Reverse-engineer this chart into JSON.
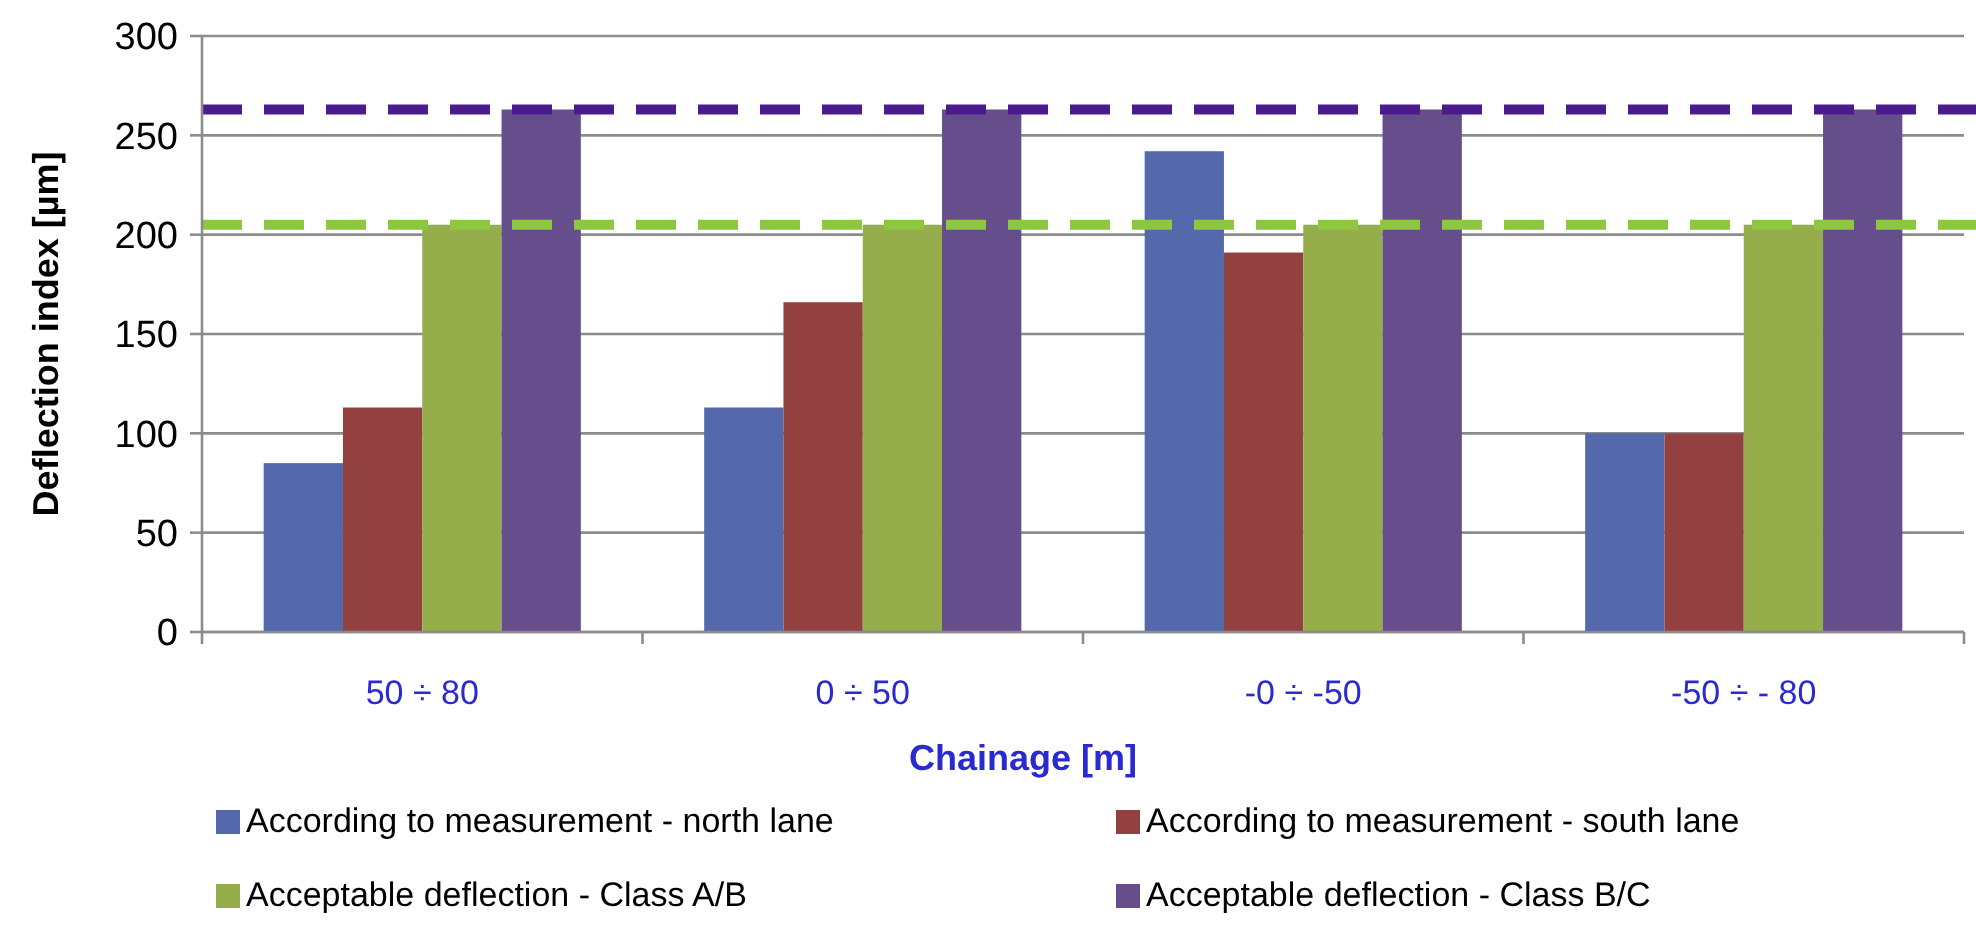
{
  "chart_data": {
    "type": "bar",
    "xlabel": "Chainage  [m]",
    "ylabel": "Deflection  index  [µm]",
    "categories": [
      "50 ÷ 80",
      "0 ÷  50",
      "-0 ÷ -50",
      "-50 ÷ - 80"
    ],
    "series": [
      {
        "name": "According to measurement - north lane",
        "color": "#5469ab",
        "values": [
          85,
          113,
          242,
          100
        ]
      },
      {
        "name": "According to measurement - south lane",
        "color": "#924140",
        "values": [
          113,
          166,
          191,
          100
        ]
      },
      {
        "name": "Acceptable deflection - Class A/B",
        "color": "#95ae4b",
        "values": [
          205,
          205,
          205,
          205
        ]
      },
      {
        "name": "Acceptable deflection - Class B/C",
        "color": "#664d8b",
        "values": [
          263,
          263,
          263,
          263
        ]
      }
    ],
    "ylim": [
      0,
      300
    ],
    "yticks": [
      0,
      50,
      100,
      150,
      200,
      250,
      300
    ],
    "grid": "y",
    "legend": "bottom",
    "ref_lines": [
      {
        "axis": "y",
        "value": 263,
        "color": "#4b1a8c",
        "line_style": "dashed"
      },
      {
        "axis": "y",
        "value": 205,
        "color": "#8dc63f",
        "line_style": "dashed"
      }
    ]
  }
}
